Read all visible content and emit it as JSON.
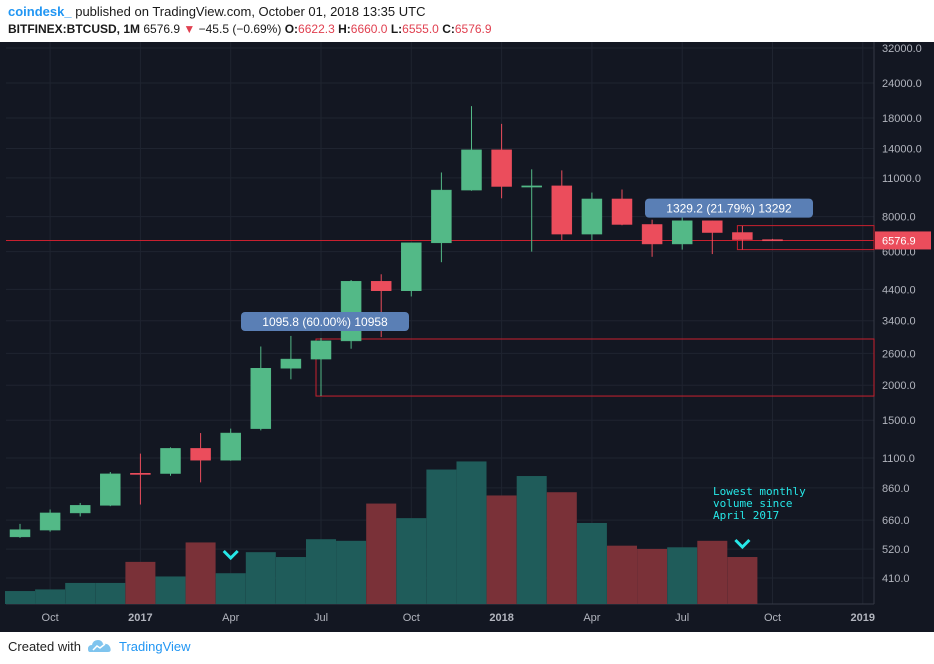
{
  "header": {
    "author": "coindesk_",
    "published_text": "published on TradingView.com, October 01, 2018 13:35 UTC",
    "symbol": "BITFINEX:BTCUSD, 1M",
    "last_price": "6576.9",
    "change": "−45.5 (−0.69%)",
    "open_label": "O:",
    "open_value": "6622.3",
    "high_label": "H:",
    "high_value": "6660.0",
    "low_label": "L:",
    "low_value": "6555.0",
    "close_label": "C:",
    "close_value": "6576.9"
  },
  "footer": {
    "created_with": "Created with",
    "brand": "TradingView"
  },
  "colors": {
    "background": "#131722",
    "up": "#53b987",
    "down": "#eb4d5c",
    "vol_up": "#1f5c5a",
    "vol_down": "#7a3138",
    "accent": "#2196f3",
    "annotation": "#26e8e8"
  },
  "chart_data": {
    "type": "candlestick",
    "y_scale": "log",
    "price_ticks": [
      "32000.0",
      "24000.0",
      "18000.0",
      "14000.0",
      "11000.0",
      "8000.0",
      "6000.0",
      "4400.0",
      "3400.0",
      "2600.0",
      "2000.0",
      "1500.0",
      "1100.0",
      "860.0",
      "660.0",
      "520.0",
      "410.0"
    ],
    "x_labels": [
      {
        "label": "Oct",
        "index": 1,
        "bold": false
      },
      {
        "label": "2017",
        "index": 4,
        "bold": true
      },
      {
        "label": "Apr",
        "index": 7,
        "bold": false
      },
      {
        "label": "Jul",
        "index": 10,
        "bold": false
      },
      {
        "label": "Oct",
        "index": 13,
        "bold": false
      },
      {
        "label": "2018",
        "index": 16,
        "bold": true
      },
      {
        "label": "Apr",
        "index": 19,
        "bold": false
      },
      {
        "label": "Jul",
        "index": 22,
        "bold": false
      },
      {
        "label": "Oct",
        "index": 25,
        "bold": false
      },
      {
        "label": "2019",
        "index": 28,
        "bold": true
      }
    ],
    "candles": [
      {
        "month": "2016-09",
        "o": 575,
        "h": 640,
        "l": 570,
        "c": 610
      },
      {
        "month": "2016-10",
        "o": 608,
        "h": 720,
        "l": 600,
        "c": 700
      },
      {
        "month": "2016-11",
        "o": 700,
        "h": 760,
        "l": 680,
        "c": 745
      },
      {
        "month": "2016-12",
        "o": 745,
        "h": 980,
        "l": 740,
        "c": 965
      },
      {
        "month": "2017-01",
        "o": 970,
        "h": 1140,
        "l": 750,
        "c": 965
      },
      {
        "month": "2017-02",
        "o": 968,
        "h": 1200,
        "l": 950,
        "c": 1190
      },
      {
        "month": "2017-03",
        "o": 1190,
        "h": 1350,
        "l": 900,
        "c": 1080
      },
      {
        "month": "2017-04",
        "o": 1080,
        "h": 1400,
        "l": 1075,
        "c": 1350
      },
      {
        "month": "2017-05",
        "o": 1400,
        "h": 2750,
        "l": 1380,
        "c": 2300
      },
      {
        "month": "2017-06",
        "o": 2300,
        "h": 3000,
        "l": 2100,
        "c": 2480
      },
      {
        "month": "2017-07",
        "o": 2480,
        "h": 2950,
        "l": 1830,
        "c": 2880
      },
      {
        "month": "2017-08",
        "o": 2880,
        "h": 4750,
        "l": 2700,
        "c": 4700
      },
      {
        "month": "2017-09",
        "o": 4700,
        "h": 4980,
        "l": 2970,
        "c": 4350
      },
      {
        "month": "2017-10",
        "o": 4350,
        "h": 6450,
        "l": 4150,
        "c": 6450
      },
      {
        "month": "2017-11",
        "o": 6450,
        "h": 11500,
        "l": 5500,
        "c": 9950
      },
      {
        "month": "2017-12",
        "o": 9950,
        "h": 19850,
        "l": 9900,
        "c": 13850
      },
      {
        "month": "2018-01",
        "o": 13850,
        "h": 17150,
        "l": 9300,
        "c": 10250
      },
      {
        "month": "2018-02",
        "o": 10250,
        "h": 11800,
        "l": 6000,
        "c": 10300
      },
      {
        "month": "2018-03",
        "o": 10300,
        "h": 11700,
        "l": 6600,
        "c": 6930
      },
      {
        "month": "2018-04",
        "o": 6930,
        "h": 9750,
        "l": 6600,
        "c": 9250
      },
      {
        "month": "2018-05",
        "o": 9250,
        "h": 10000,
        "l": 7450,
        "c": 7500
      },
      {
        "month": "2018-06",
        "o": 7500,
        "h": 7800,
        "l": 5750,
        "c": 6390
      },
      {
        "month": "2018-07",
        "o": 6390,
        "h": 8500,
        "l": 6100,
        "c": 7730
      },
      {
        "month": "2018-08",
        "o": 7730,
        "h": 7750,
        "l": 5880,
        "c": 7020
      },
      {
        "month": "2018-09",
        "o": 7020,
        "h": 7410,
        "l": 6100,
        "c": 6625
      },
      {
        "month": "2018-10",
        "o": 6622.3,
        "h": 6660,
        "l": 6555,
        "c": 6576.9
      }
    ],
    "volume_relative": [
      0.08,
      0.09,
      0.13,
      0.13,
      0.26,
      0.17,
      0.38,
      0.19,
      0.32,
      0.29,
      0.4,
      0.39,
      0.62,
      0.53,
      0.83,
      0.88,
      0.67,
      0.79,
      0.69,
      0.5,
      0.36,
      0.34,
      0.35,
      0.39,
      0.29,
      0.0
    ],
    "last_price_label": "6576.9",
    "measure_boxes": [
      {
        "text": "1095.8 (60.00%) 10958",
        "from_index": 10,
        "price_from": 1830,
        "price_to": 2925
      },
      {
        "text": "1329.2 (21.79%) 13292",
        "from_index": 24,
        "price_from": 6100,
        "price_to": 7430
      }
    ],
    "annotation": {
      "text_lines": [
        "Lowest monthly",
        "volume since",
        "April 2017"
      ]
    },
    "volume_markers": [
      7,
      24
    ]
  }
}
